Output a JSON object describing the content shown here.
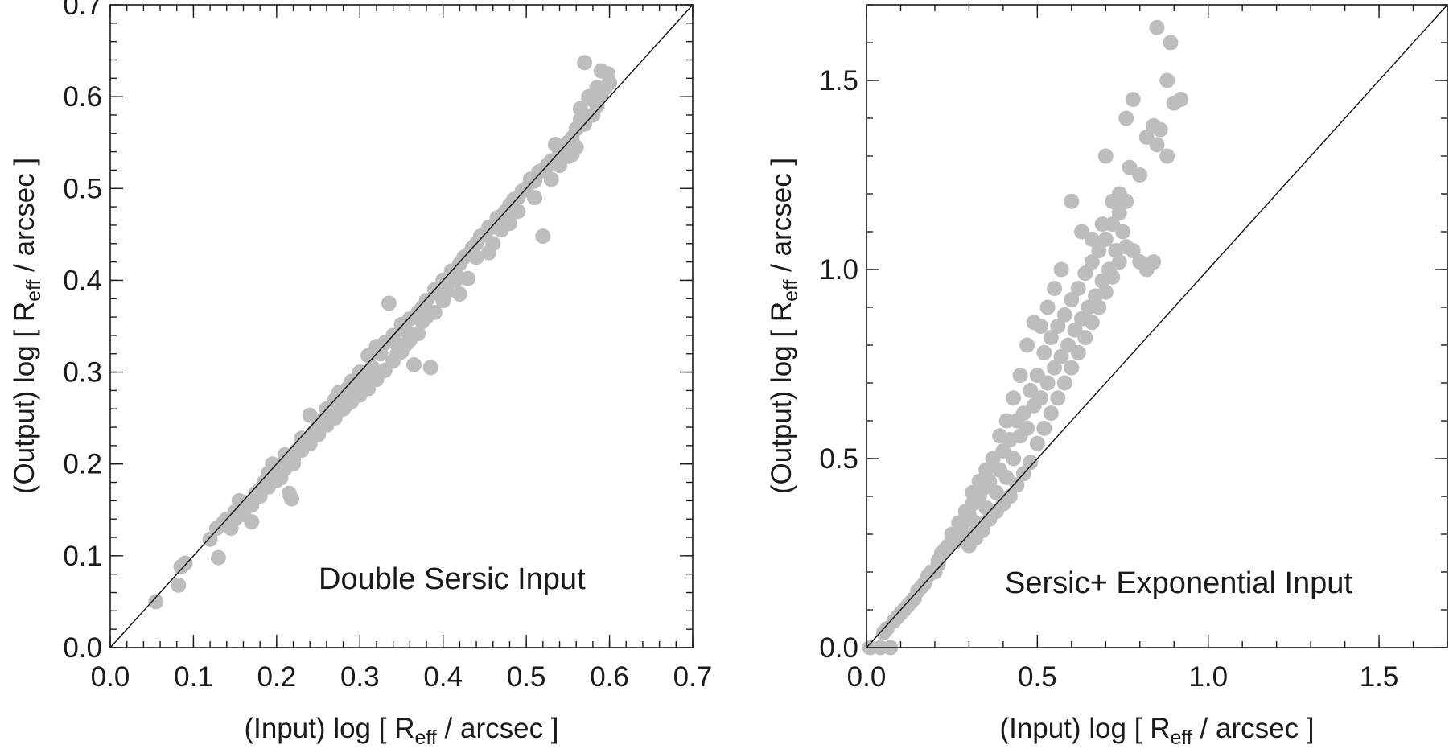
{
  "chart_data": [
    {
      "type": "scatter",
      "xlabel_main": "(Input) log [ R",
      "xlabel_sub": "eff",
      "xlabel_tail": " / arcsec ]",
      "ylabel_main": "(Output) log [ R",
      "ylabel_sub": "eff",
      "ylabel_tail": " / arcsec ]",
      "annotation": "Double Sersic Input",
      "xlim": [
        0.0,
        0.7
      ],
      "ylim": [
        0.0,
        0.7
      ],
      "xticks": [
        0.0,
        0.1,
        0.2,
        0.3,
        0.4,
        0.5,
        0.6,
        0.7
      ],
      "yticks": [
        0.0,
        0.1,
        0.2,
        0.3,
        0.4,
        0.5,
        0.6,
        0.7
      ],
      "xtick_labels": [
        "0.0",
        "0.1",
        "0.2",
        "0.3",
        "0.4",
        "0.5",
        "0.6",
        "0.7"
      ],
      "ytick_labels": [
        "0.0",
        "0.1",
        "0.2",
        "0.3",
        "0.4",
        "0.5",
        "0.6",
        "0.7"
      ],
      "minor_step": 0.02,
      "reference_line": "y = x",
      "point_color": "#bdbdbd",
      "points": [
        [
          0.055,
          0.05
        ],
        [
          0.082,
          0.068
        ],
        [
          0.085,
          0.088
        ],
        [
          0.09,
          0.092
        ],
        [
          0.13,
          0.098
        ],
        [
          0.12,
          0.118
        ],
        [
          0.128,
          0.13
        ],
        [
          0.135,
          0.135
        ],
        [
          0.14,
          0.14
        ],
        [
          0.15,
          0.148
        ],
        [
          0.155,
          0.16
        ],
        [
          0.16,
          0.152
        ],
        [
          0.165,
          0.158
        ],
        [
          0.17,
          0.137
        ],
        [
          0.175,
          0.168
        ],
        [
          0.18,
          0.172
        ],
        [
          0.185,
          0.18
        ],
        [
          0.19,
          0.19
        ],
        [
          0.195,
          0.2
        ],
        [
          0.2,
          0.198
        ],
        [
          0.205,
          0.185
        ],
        [
          0.21,
          0.21
        ],
        [
          0.215,
          0.168
        ],
        [
          0.218,
          0.162
        ],
        [
          0.22,
          0.205
        ],
        [
          0.225,
          0.215
        ],
        [
          0.23,
          0.228
        ],
        [
          0.235,
          0.225
        ],
        [
          0.24,
          0.253
        ],
        [
          0.245,
          0.235
        ],
        [
          0.25,
          0.245
        ],
        [
          0.255,
          0.248
        ],
        [
          0.26,
          0.26
        ],
        [
          0.265,
          0.252
        ],
        [
          0.27,
          0.27
        ],
        [
          0.275,
          0.278
        ],
        [
          0.28,
          0.27
        ],
        [
          0.285,
          0.282
        ],
        [
          0.29,
          0.29
        ],
        [
          0.295,
          0.285
        ],
        [
          0.3,
          0.3
        ],
        [
          0.305,
          0.292
        ],
        [
          0.31,
          0.318
        ],
        [
          0.315,
          0.305
        ],
        [
          0.32,
          0.328
        ],
        [
          0.325,
          0.32
        ],
        [
          0.33,
          0.332
        ],
        [
          0.335,
          0.375
        ],
        [
          0.34,
          0.34
        ],
        [
          0.345,
          0.33
        ],
        [
          0.35,
          0.352
        ],
        [
          0.355,
          0.345
        ],
        [
          0.36,
          0.358
        ],
        [
          0.365,
          0.308
        ],
        [
          0.37,
          0.365
        ],
        [
          0.375,
          0.37
        ],
        [
          0.38,
          0.378
        ],
        [
          0.385,
          0.305
        ],
        [
          0.39,
          0.39
        ],
        [
          0.395,
          0.385
        ],
        [
          0.4,
          0.4
        ],
        [
          0.405,
          0.395
        ],
        [
          0.41,
          0.41
        ],
        [
          0.415,
          0.41
        ],
        [
          0.42,
          0.418
        ],
        [
          0.425,
          0.425
        ],
        [
          0.43,
          0.428
        ],
        [
          0.435,
          0.435
        ],
        [
          0.44,
          0.44
        ],
        [
          0.445,
          0.448
        ],
        [
          0.45,
          0.45
        ],
        [
          0.455,
          0.458
        ],
        [
          0.46,
          0.458
        ],
        [
          0.465,
          0.468
        ],
        [
          0.47,
          0.47
        ],
        [
          0.475,
          0.475
        ],
        [
          0.48,
          0.482
        ],
        [
          0.485,
          0.488
        ],
        [
          0.49,
          0.49
        ],
        [
          0.495,
          0.497
        ],
        [
          0.5,
          0.5
        ],
        [
          0.505,
          0.51
        ],
        [
          0.51,
          0.508
        ],
        [
          0.515,
          0.518
        ],
        [
          0.52,
          0.52
        ],
        [
          0.525,
          0.525
        ],
        [
          0.53,
          0.53
        ],
        [
          0.535,
          0.548
        ],
        [
          0.54,
          0.54
        ],
        [
          0.545,
          0.545
        ],
        [
          0.55,
          0.55
        ],
        [
          0.555,
          0.555
        ],
        [
          0.56,
          0.565
        ],
        [
          0.565,
          0.575
        ],
        [
          0.57,
          0.57
        ],
        [
          0.575,
          0.598
        ],
        [
          0.58,
          0.58
        ],
        [
          0.585,
          0.59
        ],
        [
          0.59,
          0.602
        ],
        [
          0.595,
          0.61
        ],
        [
          0.57,
          0.637
        ],
        [
          0.59,
          0.628
        ],
        [
          0.598,
          0.625
        ],
        [
          0.6,
          0.615
        ],
        [
          0.575,
          0.6
        ],
        [
          0.585,
          0.61
        ],
        [
          0.565,
          0.587
        ],
        [
          0.555,
          0.537
        ],
        [
          0.52,
          0.448
        ],
        [
          0.48,
          0.462
        ],
        [
          0.46,
          0.44
        ],
        [
          0.43,
          0.402
        ],
        [
          0.42,
          0.385
        ],
        [
          0.4,
          0.378
        ],
        [
          0.39,
          0.365
        ],
        [
          0.37,
          0.342
        ],
        [
          0.36,
          0.335
        ],
        [
          0.35,
          0.322
        ],
        [
          0.34,
          0.312
        ],
        [
          0.33,
          0.302
        ],
        [
          0.32,
          0.292
        ],
        [
          0.31,
          0.282
        ],
        [
          0.3,
          0.275
        ],
        [
          0.29,
          0.268
        ],
        [
          0.28,
          0.26
        ],
        [
          0.27,
          0.25
        ],
        [
          0.26,
          0.242
        ],
        [
          0.25,
          0.232
        ],
        [
          0.24,
          0.222
        ],
        [
          0.23,
          0.215
        ],
        [
          0.22,
          0.2
        ],
        [
          0.21,
          0.195
        ],
        [
          0.2,
          0.182
        ],
        [
          0.19,
          0.175
        ],
        [
          0.18,
          0.165
        ],
        [
          0.17,
          0.155
        ],
        [
          0.16,
          0.145
        ],
        [
          0.15,
          0.14
        ],
        [
          0.145,
          0.13
        ],
        [
          0.455,
          0.43
        ],
        [
          0.47,
          0.455
        ],
        [
          0.49,
          0.475
        ],
        [
          0.51,
          0.49
        ],
        [
          0.53,
          0.51
        ],
        [
          0.54,
          0.525
        ],
        [
          0.55,
          0.535
        ],
        [
          0.56,
          0.545
        ],
        [
          0.44,
          0.425
        ],
        [
          0.415,
          0.4
        ],
        [
          0.405,
          0.388
        ],
        [
          0.38,
          0.36
        ],
        [
          0.375,
          0.355
        ],
        [
          0.355,
          0.33
        ],
        [
          0.345,
          0.32
        ],
        [
          0.325,
          0.3
        ],
        [
          0.315,
          0.295
        ],
        [
          0.305,
          0.282
        ],
        [
          0.295,
          0.275
        ],
        [
          0.285,
          0.265
        ],
        [
          0.275,
          0.258
        ]
      ]
    },
    {
      "type": "scatter",
      "xlabel_main": "(Input) log [ R",
      "xlabel_sub": "eff",
      "xlabel_tail": " / arcsec ]",
      "ylabel_main": "(Output) log [ R",
      "ylabel_sub": "eff",
      "ylabel_tail": " / arcsec ]",
      "annotation": "Sersic+ Exponential Input",
      "xlim": [
        0.0,
        1.7
      ],
      "ylim": [
        0.0,
        1.7
      ],
      "xticks": [
        0.0,
        0.5,
        1.0,
        1.5
      ],
      "yticks": [
        0.0,
        0.5,
        1.0,
        1.5
      ],
      "xtick_labels": [
        "0.0",
        "0.5",
        "1.0",
        "1.5"
      ],
      "ytick_labels": [
        "0.0",
        "0.5",
        "1.0",
        "1.5"
      ],
      "minor_step": 0.1,
      "reference_line": "y = x",
      "point_color": "#bdbdbd",
      "points": [
        [
          0.01,
          0.0
        ],
        [
          0.04,
          0.0
        ],
        [
          0.07,
          0.0
        ],
        [
          0.05,
          0.04
        ],
        [
          0.08,
          0.07
        ],
        [
          0.1,
          0.09
        ],
        [
          0.12,
          0.11
        ],
        [
          0.14,
          0.13
        ],
        [
          0.16,
          0.16
        ],
        [
          0.18,
          0.19
        ],
        [
          0.2,
          0.2
        ],
        [
          0.21,
          0.23
        ],
        [
          0.22,
          0.25
        ],
        [
          0.24,
          0.27
        ],
        [
          0.25,
          0.3
        ],
        [
          0.26,
          0.28
        ],
        [
          0.28,
          0.33
        ],
        [
          0.29,
          0.3
        ],
        [
          0.3,
          0.35
        ],
        [
          0.31,
          0.38
        ],
        [
          0.32,
          0.33
        ],
        [
          0.33,
          0.4
        ],
        [
          0.34,
          0.42
        ],
        [
          0.35,
          0.37
        ],
        [
          0.36,
          0.44
        ],
        [
          0.37,
          0.5
        ],
        [
          0.38,
          0.41
        ],
        [
          0.39,
          0.47
        ],
        [
          0.4,
          0.52
        ],
        [
          0.41,
          0.45
        ],
        [
          0.42,
          0.55
        ],
        [
          0.43,
          0.5
        ],
        [
          0.44,
          0.6
        ],
        [
          0.45,
          0.56
        ],
        [
          0.46,
          0.62
        ],
        [
          0.47,
          0.58
        ],
        [
          0.48,
          0.68
        ],
        [
          0.49,
          0.64
        ],
        [
          0.5,
          0.72
        ],
        [
          0.51,
          0.66
        ],
        [
          0.52,
          0.78
        ],
        [
          0.53,
          0.7
        ],
        [
          0.54,
          0.82
        ],
        [
          0.55,
          0.74
        ],
        [
          0.56,
          0.85
        ],
        [
          0.57,
          0.77
        ],
        [
          0.58,
          0.88
        ],
        [
          0.59,
          0.8
        ],
        [
          0.6,
          0.92
        ],
        [
          0.61,
          0.84
        ],
        [
          0.62,
          0.95
        ],
        [
          0.63,
          0.87
        ],
        [
          0.64,
          0.99
        ],
        [
          0.65,
          0.9
        ],
        [
          0.66,
          1.02
        ],
        [
          0.67,
          0.93
        ],
        [
          0.68,
          1.05
        ],
        [
          0.69,
          0.97
        ],
        [
          0.7,
          1.08
        ],
        [
          0.71,
          1.0
        ],
        [
          0.72,
          1.12
        ],
        [
          0.73,
          1.05
        ],
        [
          0.74,
          1.15
        ],
        [
          0.75,
          1.1
        ],
        [
          0.76,
          1.18
        ],
        [
          0.78,
          1.05
        ],
        [
          0.8,
          1.02
        ],
        [
          0.82,
          1.0
        ],
        [
          0.84,
          1.02
        ],
        [
          0.7,
          1.3
        ],
        [
          0.77,
          1.27
        ],
        [
          0.8,
          1.25
        ],
        [
          0.82,
          1.35
        ],
        [
          0.85,
          1.33
        ],
        [
          0.88,
          1.3
        ],
        [
          0.9,
          1.44
        ],
        [
          0.92,
          1.45
        ],
        [
          0.88,
          1.5
        ],
        [
          0.76,
          1.4
        ],
        [
          0.78,
          1.45
        ],
        [
          0.84,
          1.38
        ],
        [
          0.86,
          1.37
        ],
        [
          0.85,
          1.64
        ],
        [
          0.89,
          1.6
        ],
        [
          0.74,
          1.2
        ],
        [
          0.72,
          1.18
        ],
        [
          0.69,
          1.12
        ],
        [
          0.66,
          1.08
        ],
        [
          0.63,
          1.1
        ],
        [
          0.6,
          1.18
        ],
        [
          0.57,
          1.0
        ],
        [
          0.55,
          0.95
        ],
        [
          0.53,
          0.9
        ],
        [
          0.51,
          0.85
        ],
        [
          0.49,
          0.86
        ],
        [
          0.47,
          0.8
        ],
        [
          0.45,
          0.72
        ],
        [
          0.43,
          0.66
        ],
        [
          0.41,
          0.6
        ],
        [
          0.39,
          0.56
        ],
        [
          0.37,
          0.5
        ],
        [
          0.35,
          0.47
        ],
        [
          0.33,
          0.44
        ],
        [
          0.31,
          0.41
        ],
        [
          0.29,
          0.36
        ],
        [
          0.27,
          0.33
        ],
        [
          0.25,
          0.29
        ],
        [
          0.23,
          0.26
        ],
        [
          0.21,
          0.22
        ],
        [
          0.19,
          0.2
        ],
        [
          0.17,
          0.17
        ],
        [
          0.15,
          0.15
        ],
        [
          0.13,
          0.12
        ],
        [
          0.11,
          0.1
        ],
        [
          0.09,
          0.08
        ],
        [
          0.06,
          0.05
        ],
        [
          0.3,
          0.27
        ],
        [
          0.32,
          0.29
        ],
        [
          0.34,
          0.31
        ],
        [
          0.36,
          0.34
        ],
        [
          0.38,
          0.36
        ],
        [
          0.4,
          0.38
        ],
        [
          0.42,
          0.4
        ],
        [
          0.44,
          0.43
        ],
        [
          0.46,
          0.46
        ],
        [
          0.48,
          0.49
        ],
        [
          0.5,
          0.54
        ],
        [
          0.52,
          0.58
        ],
        [
          0.54,
          0.62
        ],
        [
          0.56,
          0.66
        ],
        [
          0.58,
          0.7
        ],
        [
          0.6,
          0.74
        ],
        [
          0.62,
          0.78
        ],
        [
          0.64,
          0.82
        ],
        [
          0.66,
          0.86
        ],
        [
          0.68,
          0.9
        ],
        [
          0.7,
          0.94
        ],
        [
          0.72,
          0.98
        ],
        [
          0.74,
          1.02
        ],
        [
          0.76,
          1.06
        ]
      ]
    }
  ]
}
